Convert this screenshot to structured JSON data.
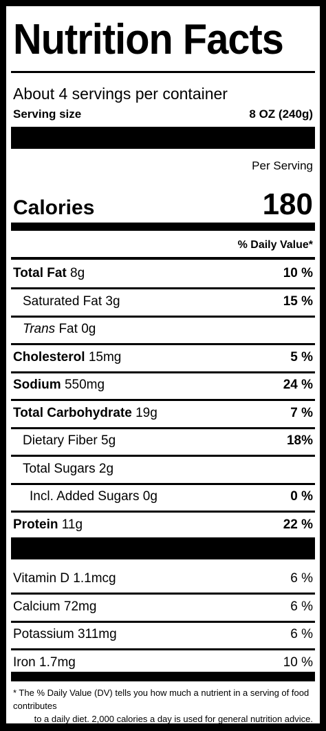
{
  "title": "Nutrition Facts",
  "servings_per_container": "About 4 servings per container",
  "serving_size_label": "Serving size",
  "serving_size_value": "8 OZ (240g)",
  "per_serving": "Per Serving",
  "calories_label": "Calories",
  "calories_value": "180",
  "daily_value_header": "% Daily Value*",
  "nutrients": [
    {
      "name": "Total Fat",
      "amount": "8g",
      "dv": "10 %"
    },
    {
      "name": "Saturated Fat",
      "amount": "3g",
      "dv": "15 %"
    },
    {
      "name": "Trans",
      "name_rest": " Fat",
      "amount": "0g",
      "dv": ""
    },
    {
      "name": "Cholesterol",
      "amount": "15mg",
      "dv": "5 %"
    },
    {
      "name": "Sodium",
      "amount": "550mg",
      "dv": "24 %"
    },
    {
      "name": "Total Carbohydrate",
      "amount": "19g",
      "dv": "7 %"
    },
    {
      "name": "Dietary Fiber",
      "amount": "5g",
      "dv": "18%"
    },
    {
      "name": "Total Sugars",
      "amount": "2g",
      "dv": ""
    },
    {
      "name": "Incl. Added Sugars",
      "amount": "0g",
      "dv": "0 %"
    },
    {
      "name": "Protein",
      "amount": "11g",
      "dv": "22 %"
    }
  ],
  "vitamins": [
    {
      "name": "Vitamin D",
      "amount": "1.1mcg",
      "dv": "6 %"
    },
    {
      "name": "Calcium",
      "amount": "72mg",
      "dv": "6 %"
    },
    {
      "name": "Potassium",
      "amount": "311mg",
      "dv": "6 %"
    },
    {
      "name": "Iron",
      "amount": "1.7mg",
      "dv": "10 %"
    }
  ],
  "footnote_line1": "* The % Daily Value (DV) tells you how much a nutrient in a serving of food contributes",
  "footnote_line2": "to a daily diet. 2,000 calories a day is used for general nutrition advice."
}
